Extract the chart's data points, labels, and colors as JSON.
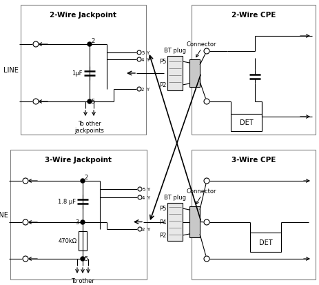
{
  "box1_title": "2-Wire Jackpoint",
  "box2_title": "2-Wire CPE",
  "box3_title": "3-Wire Jackpoint",
  "box4_title": "3-Wire CPE",
  "label_line": "LINE",
  "label_connector_top": "Connector",
  "label_connector_bot": "Connector",
  "label_bt_top": "BT plug",
  "label_bt_bot": "BT plug",
  "label_to_other": "To other\njackpoints",
  "label_1uF": "1μF",
  "label_1p8uF": "1.8 μF",
  "label_470k": "470kΩ",
  "label_det": "DET",
  "label_p5_top": "P5",
  "label_p2_top": "P2",
  "label_p5_bot": "P5",
  "label_p4_bot": "P4",
  "label_p2_bot": "P2"
}
